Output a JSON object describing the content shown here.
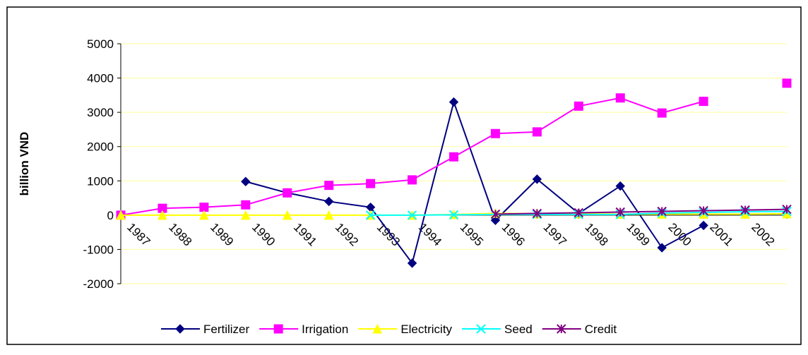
{
  "chart_data": {
    "type": "line",
    "y_label": "billion VND",
    "categories": [
      "1987",
      "1988",
      "1989",
      "1990",
      "1991",
      "1992",
      "1993",
      "1994",
      "1995",
      "1996",
      "1997",
      "1998",
      "1999",
      "2000",
      "2001",
      "2002",
      null
    ],
    "series": [
      {
        "name": "Fertilizer",
        "color": "#000080",
        "marker": "diamond",
        "values": [
          null,
          null,
          null,
          980,
          650,
          400,
          230,
          -1400,
          3300,
          -150,
          1050,
          50,
          850,
          -950,
          -300,
          null,
          null
        ]
      },
      {
        "name": "Irrigation",
        "color": "#ff00ff",
        "marker": "square",
        "values": [
          0,
          200,
          230,
          300,
          650,
          870,
          920,
          1030,
          1700,
          2380,
          2430,
          3180,
          3420,
          2980,
          3320,
          null,
          3850
        ]
      },
      {
        "name": "Electricity",
        "color": "#ffff00",
        "marker": "triangle",
        "values": [
          0,
          0,
          0,
          0,
          0,
          0,
          0,
          0,
          20,
          50,
          40,
          40,
          30,
          30,
          30,
          30,
          40
        ]
      },
      {
        "name": "Seed",
        "color": "#00ffff",
        "marker": "x",
        "values": [
          null,
          null,
          null,
          null,
          null,
          null,
          0,
          0,
          10,
          20,
          20,
          20,
          20,
          60,
          80,
          100,
          110
        ]
      },
      {
        "name": "Credit",
        "color": "#800080",
        "marker": "star",
        "values": [
          null,
          null,
          null,
          null,
          null,
          null,
          null,
          null,
          null,
          30,
          50,
          70,
          90,
          110,
          130,
          150,
          170
        ]
      }
    ],
    "ylim": [
      -2000,
      5000
    ],
    "yticks": [
      5000,
      4000,
      3000,
      2000,
      1000,
      0,
      -1000,
      -2000
    ],
    "grid": true,
    "legend": "bottom"
  }
}
